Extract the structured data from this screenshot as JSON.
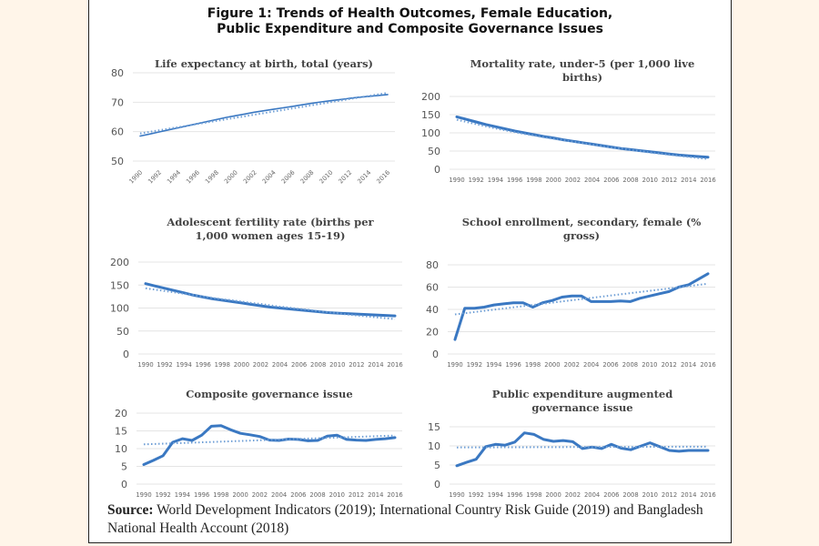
{
  "figure": {
    "title_line1": "Figure 1: Trends of Health Outcomes, Female Education,",
    "title_line2": "Public Expenditure and Composite Governance Issues"
  },
  "source": {
    "label": "Source:",
    "text": " World Development Indicators (2019); International Country Risk Guide (2019) and Bangladesh National Health Account (2018)"
  },
  "colors": {
    "line": "#3a78c2",
    "trend": "#6f9fd6",
    "grid": "#e4e4e4"
  },
  "chart_data": [
    {
      "id": "life-expectancy",
      "type": "line",
      "title": [
        "Life expectancy at birth, total (years)"
      ],
      "xlabel": "",
      "ylabel": "",
      "ylim": [
        50,
        80
      ],
      "yticks": [
        50,
        60,
        70,
        80
      ],
      "xticks": [
        "1990",
        "1992",
        "1994",
        "1996",
        "1998",
        "2000",
        "2002",
        "2004",
        "2006",
        "2008",
        "2010",
        "2012",
        "2014",
        "2016"
      ],
      "xticks_rotated": true,
      "x": [
        1990,
        1991,
        1992,
        1993,
        1994,
        1995,
        1996,
        1997,
        1998,
        1999,
        2000,
        2001,
        2002,
        2003,
        2004,
        2005,
        2006,
        2007,
        2008,
        2009,
        2010,
        2011,
        2012,
        2013,
        2014,
        2015,
        2016
      ],
      "series": [
        {
          "name": "Life expectancy",
          "values": [
            58.5,
            59.2,
            59.9,
            60.6,
            61.3,
            62.0,
            62.7,
            63.4,
            64.1,
            64.8,
            65.4,
            66.0,
            66.6,
            67.1,
            67.6,
            68.1,
            68.6,
            69.1,
            69.6,
            70.1,
            70.5,
            70.9,
            71.3,
            71.7,
            72.0,
            72.3,
            72.6
          ]
        },
        {
          "name": "Linear trend",
          "style": "dotted",
          "values": [
            59.4,
            73.2
          ]
        }
      ],
      "grid": true,
      "legend": "none"
    },
    {
      "id": "mortality-under5",
      "type": "line",
      "title": [
        "Mortality rate, under-5 (per 1,000 live",
        "births)"
      ],
      "xlabel": "",
      "ylabel": "",
      "ylim": [
        0,
        200
      ],
      "yticks": [
        0,
        50,
        100,
        150,
        200
      ],
      "xticks": [
        "1990",
        "1992",
        "1994",
        "1996",
        "1998",
        "2000",
        "2002",
        "2004",
        "2006",
        "2008",
        "2010",
        "2012",
        "2014",
        "2016"
      ],
      "xticks_rotated": false,
      "x": [
        1990,
        1991,
        1992,
        1993,
        1994,
        1995,
        1996,
        1997,
        1998,
        1999,
        2000,
        2001,
        2002,
        2003,
        2004,
        2005,
        2006,
        2007,
        2008,
        2009,
        2010,
        2011,
        2012,
        2013,
        2014,
        2015,
        2016
      ],
      "series": [
        {
          "name": "Mortality under-5",
          "values": [
            144,
            137,
            130,
            123,
            117,
            111,
            105,
            100,
            95,
            90,
            86,
            81,
            77,
            73,
            69,
            65,
            61,
            57,
            54,
            51,
            48,
            45,
            42,
            39,
            37,
            35,
            33
          ]
        },
        {
          "name": "Trend",
          "style": "dotted",
          "values": [
            136,
            130,
            124,
            118,
            112,
            107,
            102,
            97,
            93,
            88,
            84,
            80,
            76,
            72,
            68,
            64,
            60,
            57,
            53,
            50,
            46,
            43,
            40,
            37,
            34,
            31,
            28
          ]
        }
      ],
      "grid": true,
      "legend": "none"
    },
    {
      "id": "adolescent-fertility",
      "type": "line",
      "title": [
        "Adolescent fertility rate (births per",
        "1,000 women ages 15-19)"
      ],
      "xlabel": "",
      "ylabel": "",
      "ylim": [
        0,
        200
      ],
      "yticks": [
        0,
        50,
        100,
        150,
        200
      ],
      "xticks": [
        "1990",
        "1992",
        "1994",
        "1996",
        "1998",
        "2000",
        "2002",
        "2004",
        "2006",
        "2008",
        "2010",
        "2012",
        "2014",
        "2016"
      ],
      "xticks_rotated": false,
      "x": [
        1990,
        1991,
        1992,
        1993,
        1994,
        1995,
        1996,
        1997,
        1998,
        1999,
        2000,
        2001,
        2002,
        2003,
        2004,
        2005,
        2006,
        2007,
        2008,
        2009,
        2010,
        2011,
        2012,
        2013,
        2014,
        2015,
        2016
      ],
      "series": [
        {
          "name": "Adolescent fertility",
          "values": [
            153,
            148,
            143,
            138,
            133,
            128,
            124,
            120,
            117,
            114,
            111,
            108,
            105,
            102,
            100,
            98,
            96,
            94,
            92,
            90,
            89,
            88,
            87,
            86,
            85,
            84,
            83
          ]
        },
        {
          "name": "Trend",
          "style": "dotted",
          "values": [
            143,
            140,
            137,
            134,
            131,
            128,
            125,
            122,
            119,
            117,
            114,
            111,
            109,
            106,
            103,
            101,
            98,
            96,
            93,
            91,
            89,
            86,
            84,
            82,
            80,
            78,
            76
          ]
        }
      ],
      "grid": true,
      "legend": "none"
    },
    {
      "id": "school-enrollment",
      "type": "line",
      "title": [
        "School enrollment, secondary, female (%",
        "gross)"
      ],
      "xlabel": "",
      "ylabel": "",
      "ylim": [
        0,
        80
      ],
      "yticks": [
        0,
        20,
        40,
        60,
        80
      ],
      "xticks": [
        "1990",
        "1992",
        "1994",
        "1996",
        "1998",
        "2000",
        "2002",
        "2004",
        "2006",
        "2008",
        "2010",
        "2012",
        "2014",
        "2016"
      ],
      "xticks_rotated": false,
      "x": [
        1990,
        1991,
        1992,
        1993,
        1994,
        1995,
        1996,
        1997,
        1998,
        1999,
        2000,
        2001,
        2002,
        2003,
        2004,
        2005,
        2006,
        2007,
        2008,
        2009,
        2010,
        2011,
        2012,
        2013,
        2014,
        2015,
        2016
      ],
      "series": [
        {
          "name": "School enrollment female",
          "values": [
            13,
            41,
            41,
            42,
            44,
            45,
            46,
            46,
            42,
            46,
            48,
            51,
            52,
            52,
            47,
            47,
            47,
            47.5,
            47,
            50,
            52,
            54,
            56,
            60,
            62,
            67,
            72
          ]
        },
        {
          "name": "Linear trend",
          "style": "dotted",
          "values": [
            35.5,
            63
          ]
        }
      ],
      "grid": true,
      "legend": "none"
    },
    {
      "id": "composite-governance",
      "type": "line",
      "title": [
        "Composite governance issue"
      ],
      "xlabel": "",
      "ylabel": "",
      "ylim": [
        0,
        20
      ],
      "yticks": [
        0,
        5,
        10,
        15,
        20
      ],
      "xticks": [
        "1990",
        "1992",
        "1994",
        "1996",
        "1998",
        "2000",
        "2002",
        "2004",
        "2006",
        "2008",
        "2010",
        "2012",
        "2014",
        "2016"
      ],
      "xticks_rotated": false,
      "x": [
        1990,
        1991,
        1992,
        1993,
        1994,
        1995,
        1996,
        1997,
        1998,
        1999,
        2000,
        2001,
        2002,
        2003,
        2004,
        2005,
        2006,
        2007,
        2008,
        2009,
        2010,
        2011,
        2012,
        2013,
        2014,
        2015,
        2016
      ],
      "series": [
        {
          "name": "Composite governance",
          "values": [
            5.5,
            6.7,
            8,
            11.8,
            12.8,
            12.3,
            13.8,
            16.3,
            16.5,
            15.3,
            14.3,
            13.9,
            13.4,
            12.4,
            12.3,
            12.7,
            12.6,
            12.2,
            12.3,
            13.5,
            13.8,
            12.6,
            12.4,
            12.3,
            12.6,
            12.8,
            13.1
          ]
        },
        {
          "name": "Linear trend",
          "style": "dotted",
          "values": [
            11.2,
            13.7
          ]
        }
      ],
      "grid": true,
      "legend": "none"
    },
    {
      "id": "public-expenditure-governance",
      "type": "line",
      "title": [
        "Public expenditure augmented",
        "governance issue"
      ],
      "xlabel": "",
      "ylabel": "",
      "ylim": [
        0,
        15
      ],
      "yticks": [
        0,
        5,
        10,
        15
      ],
      "xticks": [
        "1990",
        "1992",
        "1994",
        "1996",
        "1998",
        "2000",
        "2002",
        "2004",
        "2006",
        "2008",
        "2010",
        "2012",
        "2014",
        "2016"
      ],
      "xticks_rotated": false,
      "x": [
        1990,
        1991,
        1992,
        1993,
        1994,
        1995,
        1996,
        1997,
        1998,
        1999,
        2000,
        2001,
        2002,
        2003,
        2004,
        2005,
        2006,
        2007,
        2008,
        2009,
        2010,
        2011,
        2012,
        2013,
        2014,
        2015,
        2016
      ],
      "series": [
        {
          "name": "Public expenditure augmented governance",
          "values": [
            4.8,
            5.7,
            6.5,
            9.8,
            10.4,
            10.2,
            11,
            13.4,
            13,
            11.7,
            11.2,
            11.4,
            11.1,
            9.3,
            9.7,
            9.3,
            10.4,
            9.4,
            9,
            9.9,
            10.8,
            9.8,
            8.8,
            8.6,
            8.8,
            8.8,
            8.8
          ]
        },
        {
          "name": "Linear trend",
          "style": "dotted",
          "values": [
            9.6,
            9.8
          ]
        }
      ],
      "grid": true,
      "legend": "none"
    }
  ]
}
